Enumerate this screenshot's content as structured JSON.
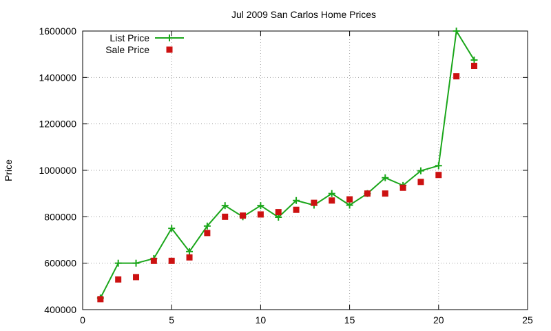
{
  "chart_data": {
    "type": "line",
    "title": "Jul 2009 San Carlos Home Prices",
    "xlabel": "",
    "ylabel": "Price",
    "xlim": [
      0,
      25
    ],
    "ylim": [
      400000,
      1600000
    ],
    "xticks": [
      0,
      5,
      10,
      15,
      20,
      25
    ],
    "yticks": [
      400000,
      600000,
      800000,
      1000000,
      1200000,
      1400000,
      1600000
    ],
    "grid": true,
    "legend_position": "top-left",
    "series": [
      {
        "name": "List Price",
        "style": "linespoints",
        "color": "#1aa61a",
        "marker": "plus",
        "x": [
          1,
          2,
          3,
          4,
          5,
          6,
          7,
          8,
          9,
          10,
          11,
          12,
          13,
          14,
          15,
          16,
          17,
          18,
          19,
          20,
          21,
          22
        ],
        "y": [
          450000,
          600000,
          600000,
          620000,
          750000,
          650000,
          760000,
          848000,
          800000,
          848000,
          798000,
          870000,
          850000,
          900000,
          850000,
          900000,
          968000,
          935000,
          998000,
          1020000,
          1600000,
          1475000
        ]
      },
      {
        "name": "Sale Price",
        "style": "points",
        "color": "#cc1111",
        "marker": "square",
        "x": [
          1,
          2,
          3,
          4,
          5,
          6,
          7,
          8,
          9,
          10,
          11,
          12,
          13,
          14,
          15,
          16,
          17,
          18,
          19,
          20,
          21,
          22
        ],
        "y": [
          445000,
          530000,
          540000,
          610000,
          610000,
          625000,
          730000,
          800000,
          805000,
          810000,
          820000,
          830000,
          860000,
          870000,
          875000,
          900000,
          900000,
          925000,
          950000,
          980000,
          1405000,
          1450000
        ]
      }
    ]
  }
}
